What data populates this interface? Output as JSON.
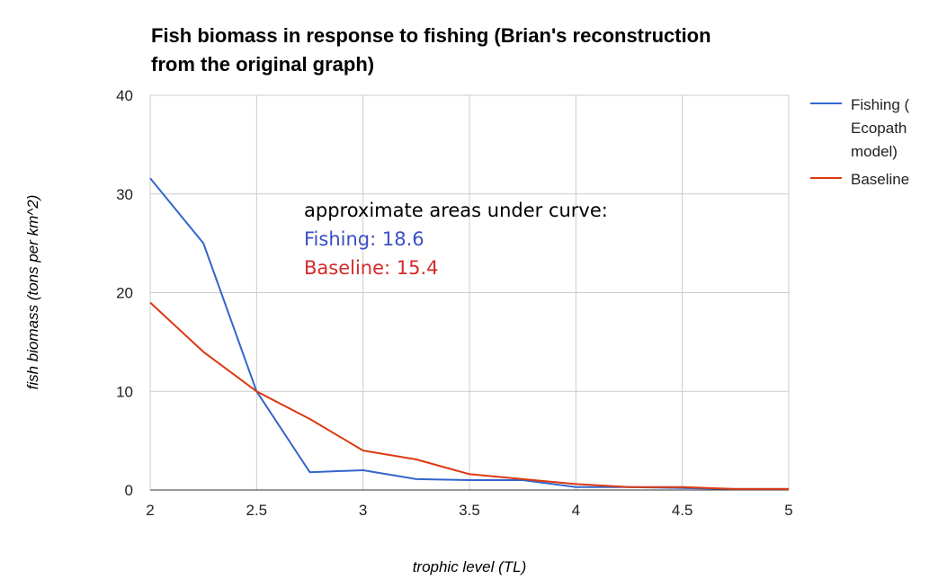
{
  "chart_data": {
    "type": "line",
    "title_line1": "Fish biomass in response to fishing (Brian's reconstruction",
    "title_line2": "from the original graph)",
    "xlabel": "trophic level (TL)",
    "ylabel": "fish biomass (tons per km^2)",
    "xlim": [
      2,
      5
    ],
    "ylim": [
      0,
      40
    ],
    "x_ticks": [
      "2",
      "2.5",
      "3",
      "3.5",
      "4",
      "4.5",
      "5"
    ],
    "y_ticks": [
      "0",
      "10",
      "20",
      "30",
      "40"
    ],
    "grid": true,
    "legend_position": "right",
    "x": [
      2,
      2.25,
      2.5,
      2.75,
      3,
      3.25,
      3.5,
      3.75,
      4,
      4.25,
      4.5,
      4.75,
      5
    ],
    "series": [
      {
        "name_lines": [
          "Fishing (",
          "Ecopath",
          "model)"
        ],
        "color": "#3366cc",
        "values": [
          31.6,
          25.0,
          10.0,
          1.8,
          2.0,
          1.1,
          1.0,
          1.0,
          0.3,
          0.3,
          0.2,
          0.1,
          0.1
        ]
      },
      {
        "name_lines": [
          "Baseline"
        ],
        "color": "#dc3912",
        "values": [
          19.0,
          14.0,
          10.0,
          7.2,
          4.0,
          3.1,
          1.6,
          1.1,
          0.6,
          0.3,
          0.3,
          0.1,
          0.1
        ]
      }
    ],
    "annotation": {
      "heading": "approximate areas under curve:",
      "line1": "Fishing: 18.6",
      "line1_color": "#3a4fc2",
      "line2": "Baseline: 15.4",
      "line2_color": "#d42a2a"
    }
  }
}
